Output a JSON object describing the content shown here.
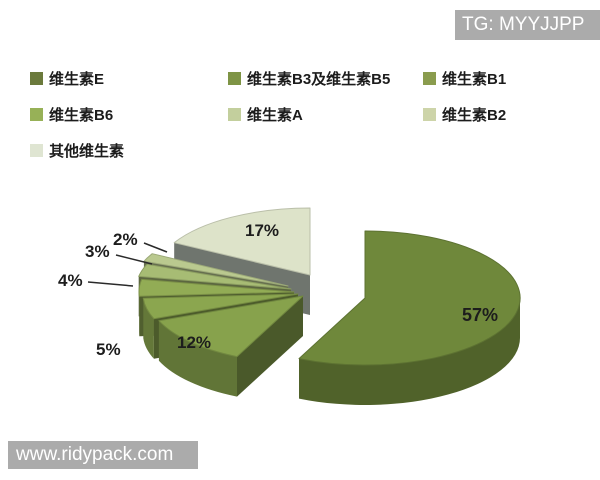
{
  "watermark_top": {
    "text": "TG: MYYJJPP",
    "bg": "#ababab",
    "fg": "#ffffff"
  },
  "watermark_bottom": {
    "text": "www.ridypack.com",
    "bg": "#ababab",
    "fg": "#ffffff"
  },
  "legend": {
    "position": "top",
    "items": [
      {
        "label": "维生素E",
        "color": "#6b7a3c"
      },
      {
        "label": "维生素B3及维生素B5",
        "color": "#7e9445"
      },
      {
        "label": "维生素B1",
        "color": "#8a9c4e"
      },
      {
        "label": "维生素B6",
        "color": "#97b157"
      },
      {
        "label": "维生素A",
        "color": "#c3cf9d"
      },
      {
        "label": "维生素B2",
        "color": "#cdd4a9"
      },
      {
        "label": "其他维生素",
        "color": "#dfe5d2"
      }
    ]
  },
  "chart_data": {
    "type": "pie",
    "projection": "3d-exploded",
    "categories": [
      "维生素E",
      "维生素B3及维生素B5",
      "维生素B1",
      "维生素B6",
      "维生素A",
      "维生素B2",
      "其他维生素"
    ],
    "values": [
      57,
      12,
      5,
      4,
      3,
      2,
      17
    ],
    "unit": "%",
    "labels": [
      "57%",
      "12%",
      "5%",
      "4%",
      "3%",
      "2%",
      "17%"
    ],
    "colors": [
      "#6f883b",
      "#87a24c",
      "#8ba64f",
      "#92ac55",
      "#a7bc74",
      "#bac98f",
      "#dde3c9"
    ],
    "wall_color": "#6f756e",
    "label_color": "#1d1d1d",
    "start_angle_deg": 0,
    "direction": "clockwise",
    "legend_position": "top",
    "title": ""
  }
}
